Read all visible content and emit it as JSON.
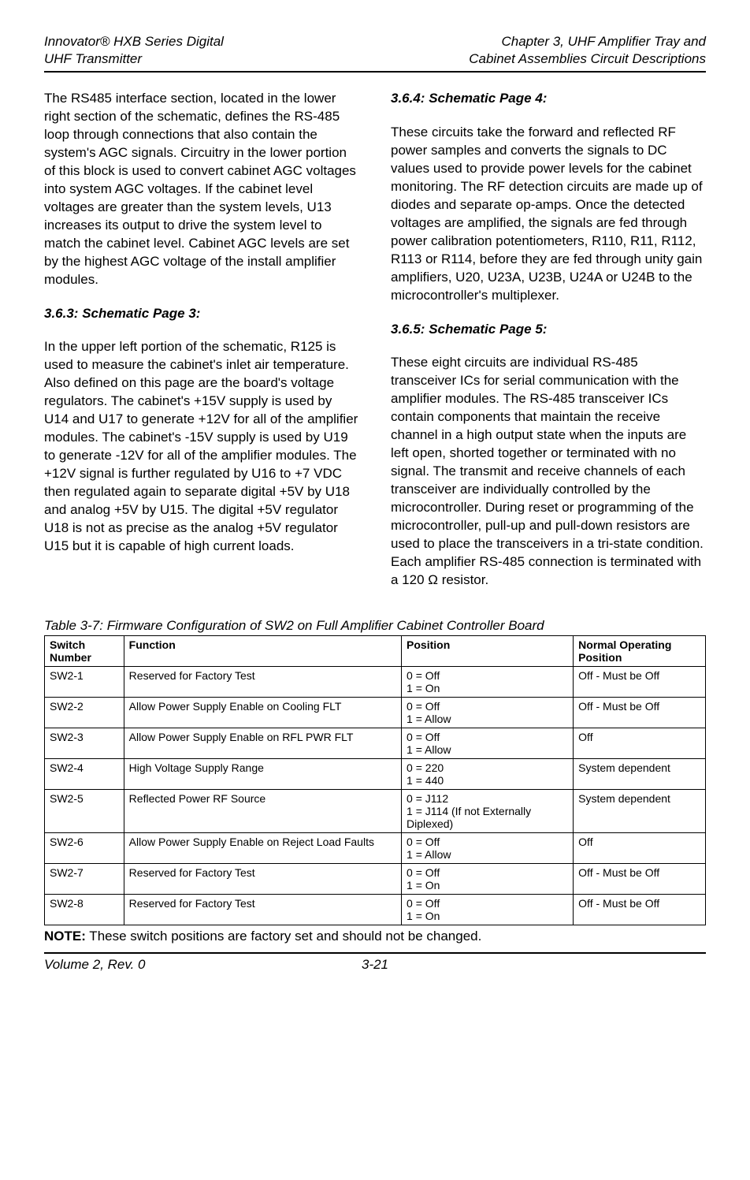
{
  "header": {
    "left_line1": "Innovator® HXB Series Digital",
    "left_line2": "UHF Transmitter",
    "right_line1": "Chapter 3, UHF Amplifier Tray and",
    "right_line2": "Cabinet Assemblies Circuit Descriptions"
  },
  "body": {
    "left": {
      "para1": "The RS485 interface section, located in the lower right section of the schematic, defines the RS-485 loop through connections that also contain the system's AGC signals.  Circuitry in the lower portion of this block is used to convert cabinet AGC voltages into system AGC voltages.  If the cabinet level voltages are greater than the system levels, U13 increases its output to drive the system level to match the cabinet level.  Cabinet AGC levels are set by the highest AGC voltage of the install amplifier modules.",
      "heading363": "3.6.3: Schematic Page 3:",
      "para2": "In the upper left portion of the schematic, R125 is used to measure the cabinet's inlet air temperature.  Also defined on this page are the board's voltage regulators.  The cabinet's +15V supply is used by U14 and U17 to generate +12V for all of the amplifier modules.  The cabinet's -15V supply is used by U19 to generate -12V for all of the amplifier modules.  The +12V signal is further regulated by U16 to +7 VDC then regulated again to separate digital +5V by U18 and analog +5V by U15.  The digital +5V regulator U18 is not as precise as the analog +5V regulator U15 but it is capable of high current loads."
    },
    "right": {
      "heading364": "3.6.4: Schematic Page 4:",
      "para1": "These circuits take the forward and reflected RF power samples and converts the signals to DC values used to provide power levels for the cabinet monitoring.  The RF detection circuits are made up of diodes and separate op-amps.  Once the detected voltages are amplified, the signals are fed through power calibration potentiometers, R110, R11, R112, R113 or R114, before they are fed through unity gain amplifiers, U20, U23A, U23B, U24A or U24B to the microcontroller's multiplexer.",
      "heading365": "3.6.5: Schematic Page 5:",
      "para2": "These eight circuits are individual RS-485 transceiver ICs for serial communication with the amplifier modules.  The RS-485 transceiver ICs contain components that maintain the receive channel in a high output state when the inputs are left open, shorted together or terminated with no signal.  The transmit and receive channels of each transceiver are individually controlled by the microcontroller.  During reset or programming of the microcontroller, pull-up and pull-down resistors are used to place the transceivers in a tri-state condition.  Each amplifier RS-485 connection is terminated with a 120 Ω resistor."
    }
  },
  "table": {
    "caption": "Table 3-7: Firmware Configuration of SW2 on Full Amplifier Cabinet Controller Board",
    "headers": {
      "sw": "Switch Number",
      "fn": "Function",
      "pos": "Position",
      "norm": "Normal Operating Position"
    },
    "rows": [
      {
        "sw": "SW2-1",
        "fn": "Reserved for Factory Test",
        "pos": "0 = Off\n1 = On",
        "norm": "Off - Must be Off"
      },
      {
        "sw": "SW2-2",
        "fn": "Allow Power Supply Enable on Cooling FLT",
        "pos": "0 = Off\n1 = Allow",
        "norm": "Off - Must be Off"
      },
      {
        "sw": "SW2-3",
        "fn": "Allow Power Supply Enable on RFL PWR FLT",
        "pos": "0 = Off\n1 = Allow",
        "norm": "Off"
      },
      {
        "sw": "SW2-4",
        "fn": "High Voltage Supply Range",
        "pos": "0 = 220\n1 = 440",
        "norm": "System dependent"
      },
      {
        "sw": "SW2-5",
        "fn": "Reflected Power RF Source",
        "pos": "0 = J112\n1 = J114 (If not Externally Diplexed)",
        "norm": "System dependent"
      },
      {
        "sw": "SW2-6",
        "fn": "Allow Power Supply Enable on Reject Load Faults",
        "pos": "0 = Off\n1 = Allow",
        "norm": "Off"
      },
      {
        "sw": "SW2-7",
        "fn": "Reserved for Factory Test",
        "pos": "0 = Off\n1 = On",
        "norm": "Off - Must be Off"
      },
      {
        "sw": "SW2-8",
        "fn": "Reserved for Factory Test",
        "pos": "0 = Off\n1 = On",
        "norm": "Off - Must be Off"
      }
    ]
  },
  "note": {
    "label": "NOTE:",
    "text": " These switch positions are factory set and should not be changed."
  },
  "footer": {
    "left": "Volume 2, Rev. 0",
    "center": "3-21"
  }
}
